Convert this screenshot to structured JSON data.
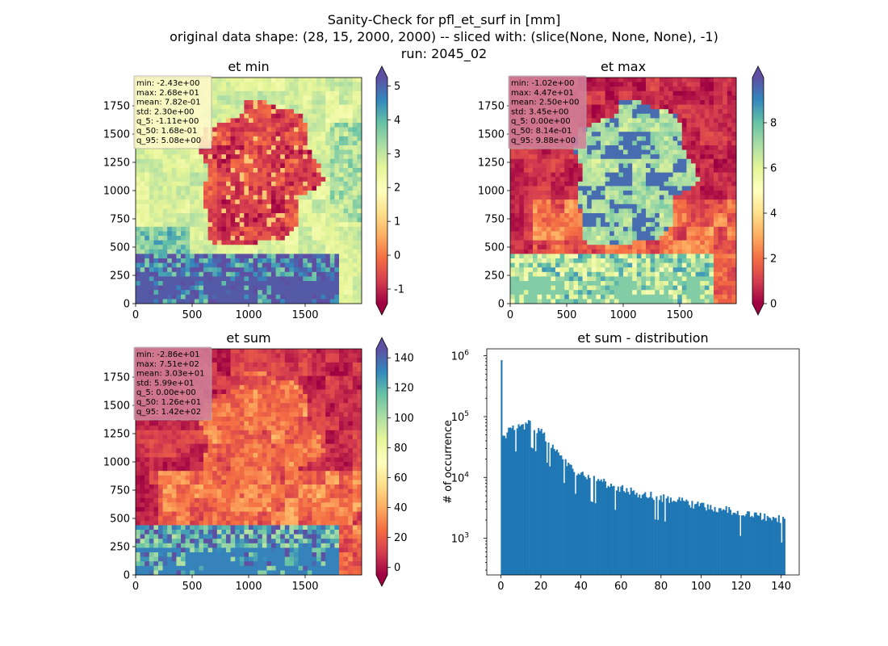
{
  "figure": {
    "title_lines": [
      "Sanity-Check for pfl_et_surf in [mm]",
      "original data shape: (28, 15, 2000, 2000) -- sliced with: (slice(None, None, None), -1)",
      "run: 2045_02"
    ]
  },
  "chart_data": [
    {
      "type": "heatmap",
      "title": "et min",
      "xlim": [
        0,
        2000
      ],
      "ylim": [
        0,
        2000
      ],
      "xticks": [
        0,
        500,
        1000,
        1500
      ],
      "yticks": [
        0,
        250,
        500,
        750,
        1000,
        1250,
        1500,
        1750
      ],
      "colormap": "Spectral",
      "colorbar": {
        "vmin": -1.43,
        "vmax": 5.25,
        "ticks": [
          -1,
          0,
          1,
          2,
          3,
          4,
          5
        ],
        "extend": "both"
      },
      "stats": [
        "min: -2.43e+00",
        "max: 2.68e+01",
        "mean: 7.82e-01",
        "std: 2.30e+00",
        "q_5: -1.11e+00",
        "q_50: 1.68e-01",
        "q_95: 5.08e+00"
      ],
      "stats_box_color": "#fdf8c8",
      "regions": {
        "germany": 0.12,
        "background": 0.62,
        "alps": 0.92
      }
    },
    {
      "type": "heatmap",
      "title": "et max",
      "xlim": [
        0,
        2000
      ],
      "ylim": [
        0,
        2000
      ],
      "xticks": [
        0,
        500,
        1000,
        1500
      ],
      "yticks": [
        0,
        250,
        500,
        750,
        1000,
        1250,
        1500,
        1750
      ],
      "colormap": "Spectral",
      "colorbar": {
        "vmin": 0,
        "vmax": 10,
        "ticks": [
          0,
          2,
          4,
          6,
          8
        ],
        "extend": "both"
      },
      "stats": [
        "min: -1.02e+00",
        "max: 4.47e+01",
        "mean: 2.50e+00",
        "std: 3.45e+00",
        "q_5: 0.00e+00",
        "q_50: 8.14e-01",
        "q_95: 9.88e+00"
      ],
      "stats_box_color": "#d07e98",
      "regions": {
        "germany": 0.72,
        "background": 0.07,
        "alps": 0.7
      }
    },
    {
      "type": "heatmap",
      "title": "et sum",
      "xlim": [
        0,
        2000
      ],
      "ylim": [
        0,
        2000
      ],
      "xticks": [
        0,
        500,
        1000,
        1500
      ],
      "yticks": [
        0,
        250,
        500,
        750,
        1000,
        1250,
        1500,
        1750
      ],
      "colormap": "Spectral",
      "colorbar": {
        "vmin": -5,
        "vmax": 146,
        "ticks": [
          0,
          20,
          40,
          60,
          80,
          100,
          120,
          140
        ],
        "extend": "both"
      },
      "stats": [
        "min: -2.86e+01",
        "max: 7.51e+02",
        "mean: 3.03e+01",
        "std: 5.99e+01",
        "q_5: 0.00e+00",
        "q_50: 1.26e+01",
        "q_95: 1.42e+02"
      ],
      "stats_box_color": "#d07e98",
      "regions": {
        "germany": 0.2,
        "background": 0.08,
        "alps": 0.85
      }
    },
    {
      "type": "bar",
      "title": "et sum - distribution",
      "xlabel": "",
      "ylabel": "# of occurrence",
      "yscale": "log",
      "xlim": [
        -7,
        149
      ],
      "ylim": [
        250,
        1300000
      ],
      "xticks": [
        0,
        20,
        40,
        60,
        80,
        100,
        120,
        140
      ],
      "yticks": [
        "10^3",
        "10^4",
        "10^5",
        "10^6"
      ],
      "bar_color": "#1f77b4",
      "bins": [
        0,
        142,
        200
      ],
      "counts": {
        "spike_at_0": 850000,
        "shape": [
          [
            0.5,
            38000
          ],
          [
            1,
            45000
          ],
          [
            4,
            58000
          ],
          [
            8,
            65000
          ],
          [
            12,
            72000
          ],
          [
            14,
            80000
          ],
          [
            16,
            72000
          ],
          [
            20,
            55000
          ],
          [
            25,
            35000
          ],
          [
            30,
            22000
          ],
          [
            35,
            15000
          ],
          [
            40,
            11000
          ],
          [
            50,
            8500
          ],
          [
            60,
            6500
          ],
          [
            70,
            5300
          ],
          [
            80,
            4700
          ],
          [
            90,
            4000
          ],
          [
            100,
            3400
          ],
          [
            110,
            3000
          ],
          [
            120,
            2600
          ],
          [
            130,
            2300
          ],
          [
            142,
            2000
          ]
        ]
      }
    }
  ]
}
